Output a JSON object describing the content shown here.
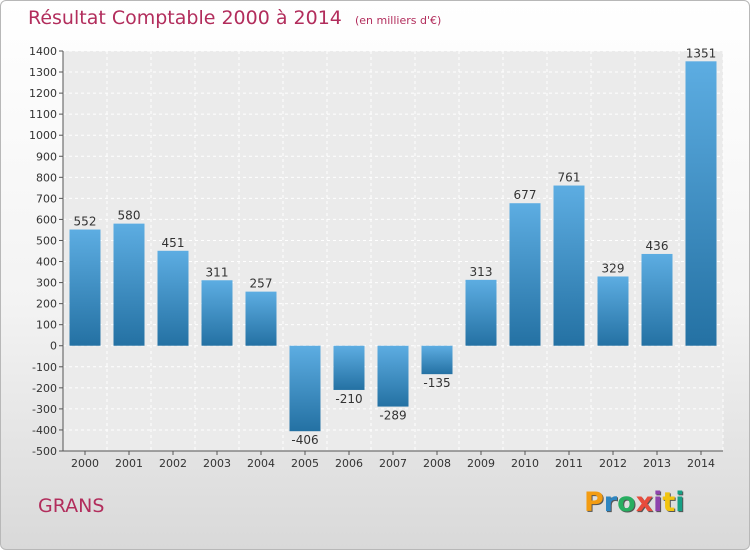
{
  "header": {
    "title": "Résultat Comptable 2000 à 2014",
    "subtitle": "(en milliers d'€)"
  },
  "footer": {
    "commune": "GRANS",
    "logo_text": "Proxiti",
    "logo_colors": [
      "#f39c12",
      "#2e86c1",
      "#27ae60",
      "#e74c3c",
      "#8e44ad",
      "#f1c40f",
      "#16a085"
    ]
  },
  "colors": {
    "title": "#b22d5c",
    "bar_top": "#5dade2",
    "bar_bottom": "#2471a3"
  },
  "chart_data": {
    "type": "bar",
    "title": "Résultat Comptable 2000 à 2014",
    "subtitle": "(en milliers d'€)",
    "categories": [
      "2000",
      "2001",
      "2002",
      "2003",
      "2004",
      "2005",
      "2006",
      "2007",
      "2008",
      "2009",
      "2010",
      "2011",
      "2012",
      "2013",
      "2014"
    ],
    "values": [
      552,
      580,
      451,
      311,
      257,
      -406,
      -210,
      -289,
      -135,
      313,
      677,
      761,
      329,
      436,
      1351
    ],
    "ylim": [
      -500,
      1400
    ],
    "yticks": [
      -500,
      -400,
      -300,
      -200,
      -100,
      0,
      100,
      200,
      300,
      400,
      500,
      600,
      700,
      800,
      900,
      1000,
      1100,
      1200,
      1300,
      1400
    ],
    "grid": true,
    "xlabel": "",
    "ylabel": ""
  }
}
